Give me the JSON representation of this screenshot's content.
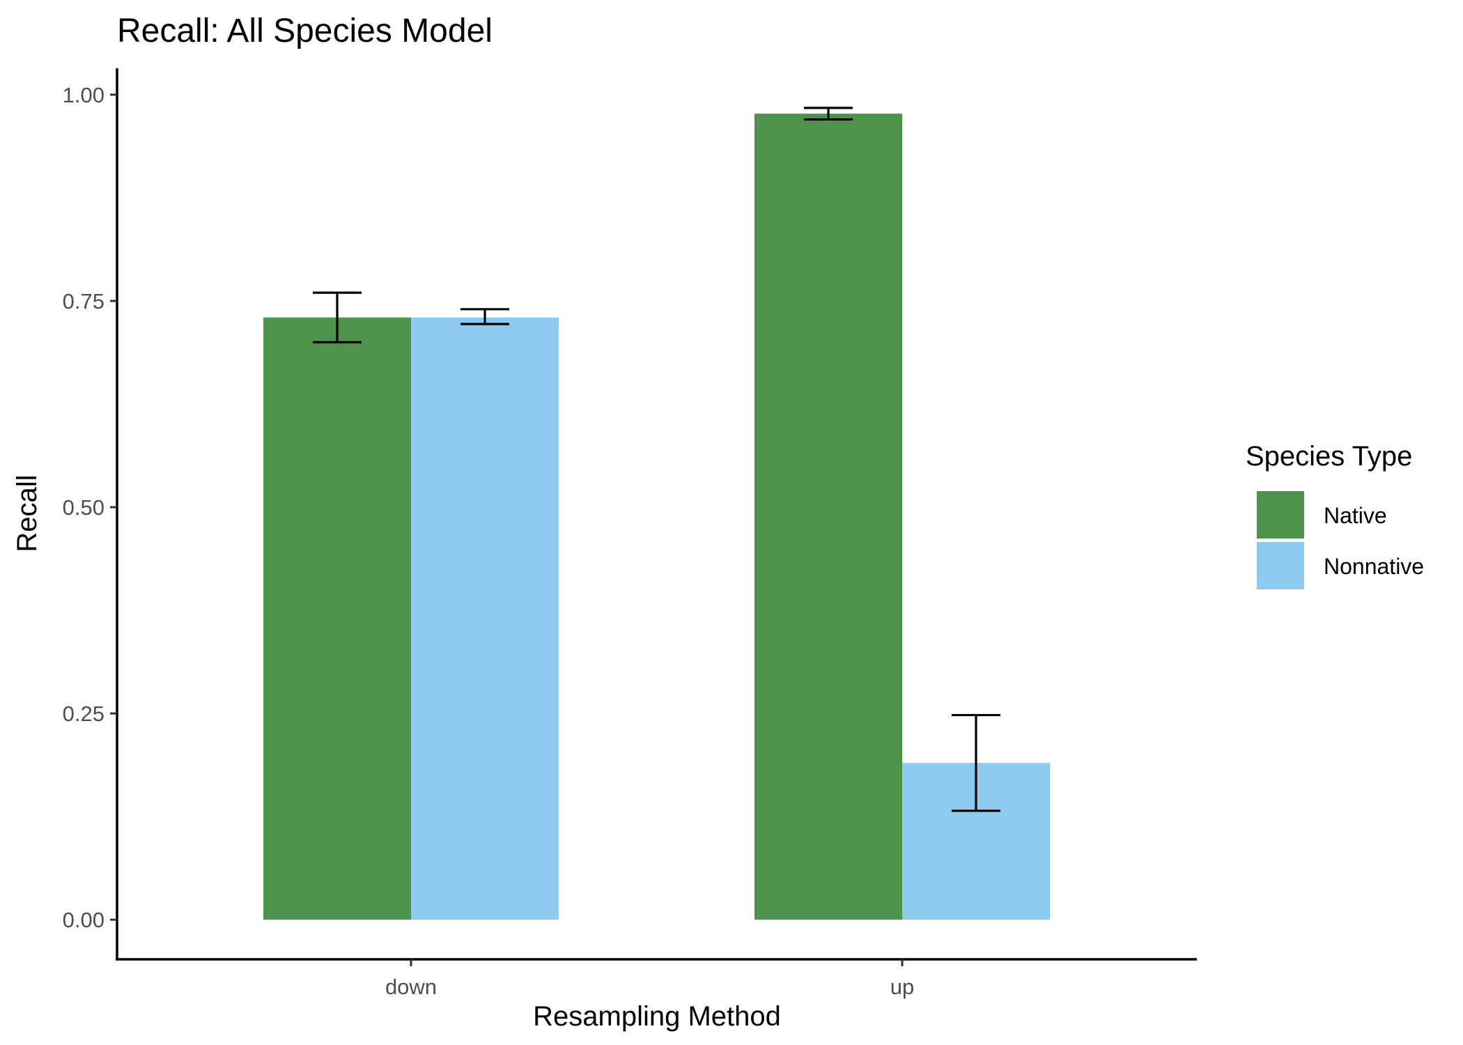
{
  "chart_data": {
    "type": "bar",
    "title": "Recall: All Species Model",
    "xlabel": "Resampling Method",
    "ylabel": "Recall",
    "categories": [
      "down",
      "up"
    ],
    "ylim": [
      -0.048,
      1.032
    ],
    "yticks": [
      0.0,
      0.25,
      0.5,
      0.75,
      1.0
    ],
    "ytick_labels": [
      "0.00",
      "0.25",
      "0.50",
      "0.75",
      "1.00"
    ],
    "grid": false,
    "legend": {
      "title": "Species Type",
      "placement": "right"
    },
    "series": [
      {
        "name": "Native",
        "color": "#4e924e",
        "values": [
          0.73,
          0.977
        ],
        "error_low": [
          0.7,
          0.97
        ],
        "error_high": [
          0.76,
          0.984
        ]
      },
      {
        "name": "Nonnative",
        "color": "#8ccaf0",
        "values": [
          0.73,
          0.19
        ],
        "error_low": [
          0.722,
          0.132
        ],
        "error_high": [
          0.74,
          0.248
        ]
      }
    ]
  }
}
